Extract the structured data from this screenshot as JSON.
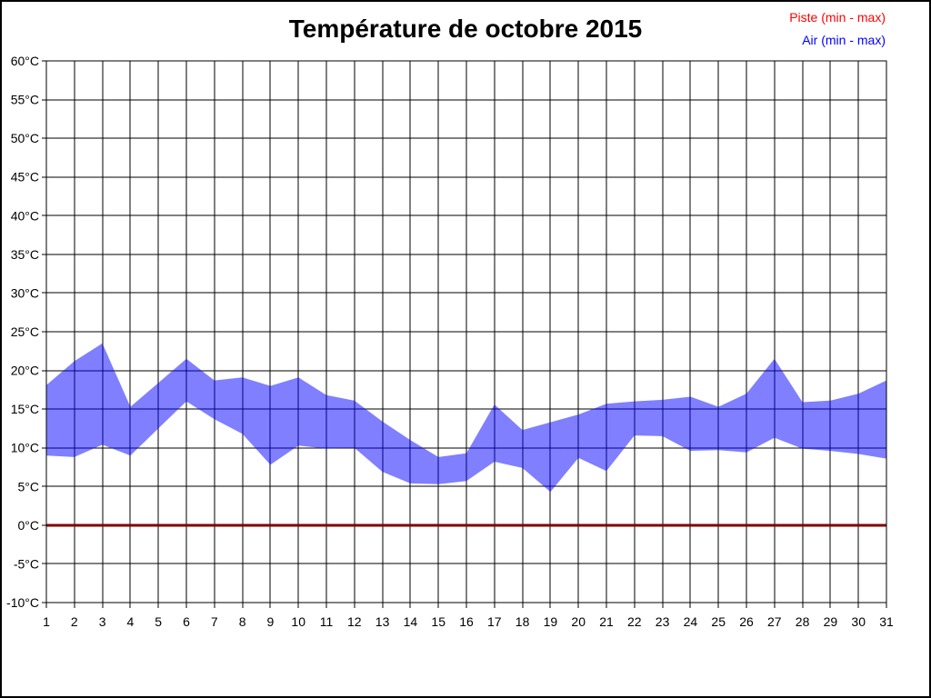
{
  "legend": [
    {
      "label": "Piste (min - max)",
      "color": "#ff0000"
    },
    {
      "label": "Air (min - max)",
      "color": "#0000ff"
    }
  ],
  "chart_data": {
    "type": "area",
    "title": "Température de octobre 2015",
    "xlabel": "",
    "ylabel": "",
    "x": [
      1,
      2,
      3,
      4,
      5,
      6,
      7,
      8,
      9,
      10,
      11,
      12,
      13,
      14,
      15,
      16,
      17,
      18,
      19,
      20,
      21,
      22,
      23,
      24,
      25,
      26,
      27,
      28,
      29,
      30,
      31
    ],
    "series": [
      {
        "name": "Piste min",
        "values": [
          0,
          0,
          0,
          0,
          0,
          0,
          0,
          0,
          0,
          0,
          0,
          0,
          0,
          0,
          0,
          0,
          0,
          0,
          0,
          0,
          0,
          0,
          0,
          0,
          0,
          0,
          0,
          0,
          0,
          0,
          0
        ]
      },
      {
        "name": "Piste max",
        "values": [
          0,
          0,
          0,
          0,
          0,
          0,
          0,
          0,
          0,
          0,
          0,
          0,
          0,
          0,
          0,
          0,
          0,
          0,
          0,
          0,
          0,
          0,
          0,
          0,
          0,
          0,
          0,
          0,
          0,
          0,
          0
        ]
      },
      {
        "name": "Air min",
        "values": [
          9.0,
          8.8,
          10.4,
          9.0,
          12.5,
          16.0,
          13.7,
          11.8,
          7.8,
          10.3,
          9.9,
          10.0,
          6.9,
          5.4,
          5.3,
          5.7,
          8.2,
          7.4,
          4.3,
          8.7,
          7.0,
          11.6,
          11.5,
          9.6,
          9.7,
          9.4,
          11.3,
          9.9,
          9.6,
          9.2,
          8.6
        ]
      },
      {
        "name": "Air max",
        "values": [
          18.1,
          21.2,
          23.5,
          15.3,
          18.4,
          21.5,
          18.7,
          19.1,
          18.0,
          19.1,
          16.8,
          16.1,
          13.4,
          11.0,
          8.8,
          9.3,
          15.6,
          12.3,
          13.3,
          14.3,
          15.7,
          16.0,
          16.2,
          16.6,
          15.3,
          17.0,
          21.5,
          15.9,
          16.1,
          17.0,
          18.7
        ]
      }
    ],
    "ylim": [
      -10,
      60
    ],
    "ytick_step": 5,
    "ytick_suffix": "°C",
    "grid": true,
    "legend_position": "top-right",
    "colors": {
      "air_band": "#0000ff",
      "air_band_opacity": 0.5,
      "piste_line": "#7f0000",
      "grid": "#000000",
      "text": "#000000"
    }
  }
}
